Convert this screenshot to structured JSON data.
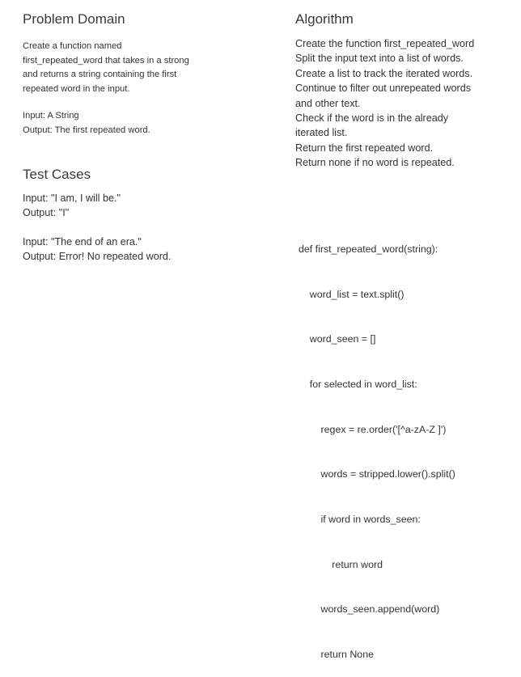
{
  "problem_domain": {
    "heading": "Problem Domain",
    "description_lines": [
      "Create a function named",
      "first_repeated_word that takes in a strong",
      "and returns a string containing the first",
      "repeated word in the input."
    ],
    "input_line": "Input: A String",
    "output_line": "Output: The first repeated word."
  },
  "test_cases": {
    "heading": "Test Cases",
    "cases": [
      {
        "input": "Input: \"I am, I will be.\"",
        "output": "Output: \"I\""
      },
      {
        "input": "Input: \"The end of an era.\"",
        "output": "Output: Error! No repeated word."
      }
    ]
  },
  "algorithm": {
    "heading": "Algorithm",
    "lines": [
      "Create the function first_repeated_word",
      "Split the input text into a list of words.",
      "Create a list to track the iterated words.",
      "Continue to filter out unrepeated words",
      "and other text.",
      "Check if the word is in the already",
      "iterated list.",
      "Return the first repeated word.",
      "Return none if no word is repeated."
    ]
  },
  "code": {
    "lines": [
      "def first_repeated_word(string):",
      "    word_list = text.split()",
      "    word_seen = []",
      "    for selected in word_list:",
      "        regex = re.order('[^a-zA-Z ]')",
      "        words = stripped.lower().split()",
      "        if word in words_seen:",
      "            return word",
      "        words_seen.append(word)",
      "        return None"
    ]
  }
}
